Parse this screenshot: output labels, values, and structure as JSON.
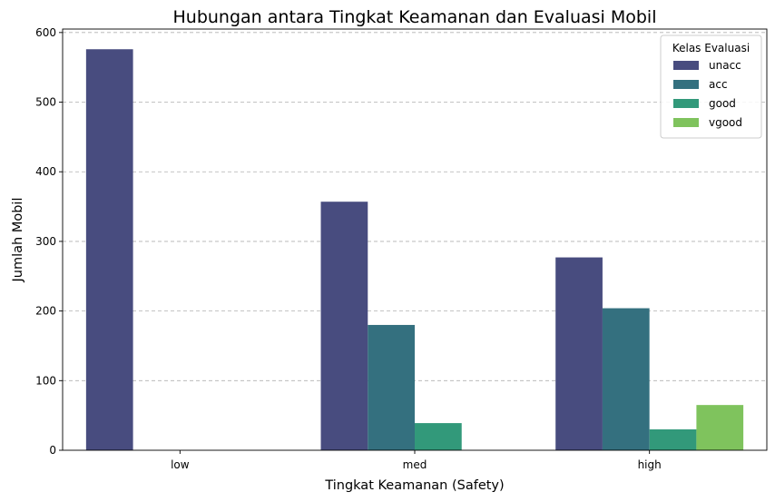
{
  "chart_data": {
    "type": "bar",
    "title": "Hubungan antara Tingkat Keamanan dan Evaluasi Mobil",
    "xlabel": "Tingkat Keamanan (Safety)",
    "ylabel": "Jumlah Mobil",
    "categories": [
      "low",
      "med",
      "high"
    ],
    "ylim": [
      0,
      605
    ],
    "yticks": [
      0,
      100,
      200,
      300,
      400,
      500,
      600
    ],
    "grid": "y-dashed",
    "legend": {
      "title": "Kelas Evaluasi",
      "placement": "top-right"
    },
    "series": [
      {
        "name": "unacc",
        "color": "#484c7f",
        "values": [
          576,
          357,
          277
        ]
      },
      {
        "name": "acc",
        "color": "#34707f",
        "values": [
          0,
          180,
          204
        ]
      },
      {
        "name": "good",
        "color": "#32997a",
        "values": [
          0,
          39,
          30
        ]
      },
      {
        "name": "vgood",
        "color": "#7fc35d",
        "values": [
          0,
          0,
          65
        ]
      }
    ]
  }
}
